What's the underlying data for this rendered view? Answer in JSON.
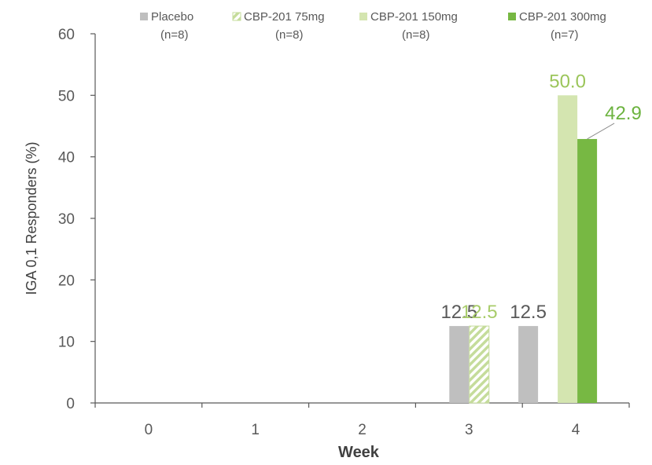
{
  "chart_data": {
    "type": "bar",
    "xlabel": "Week",
    "ylabel": "IGA 0,1 Responders (%)",
    "ylim": [
      0,
      60
    ],
    "yticks": [
      0,
      10,
      20,
      30,
      40,
      50,
      60
    ],
    "categories": [
      "0",
      "1",
      "2",
      "3",
      "4"
    ],
    "grid": false,
    "legend_position": "top",
    "series": [
      {
        "name": "Placebo",
        "n_label": "(n=8)",
        "color": "#bfbfbf",
        "pattern": "solid",
        "values": [
          0,
          0,
          0,
          12.5,
          12.5
        ],
        "data_labels": [
          null,
          null,
          null,
          "12.5",
          "12.5"
        ],
        "label_color": "#595959"
      },
      {
        "name": "CBP-201 75mg",
        "n_label": "(n=8)",
        "color": "#c5dc9b",
        "pattern": "hatch",
        "values": [
          0,
          0,
          0,
          12.5,
          null
        ],
        "data_labels": [
          null,
          null,
          null,
          "12.5",
          null
        ],
        "label_color": "#a8cc6a"
      },
      {
        "name": "CBP-201 150mg",
        "n_label": "(n=8)",
        "color": "#d4e5b0",
        "pattern": "solid",
        "values": [
          0,
          0,
          0,
          null,
          50.0
        ],
        "data_labels": [
          null,
          null,
          null,
          null,
          "50.0"
        ],
        "label_color": "#9bc55a"
      },
      {
        "name": "CBP-201 300mg",
        "n_label": "(n=7)",
        "color": "#77b843",
        "pattern": "solid",
        "values": [
          0,
          0,
          0,
          null,
          42.9
        ],
        "data_labels": [
          null,
          null,
          null,
          null,
          "42.9"
        ],
        "label_color": "#6cb33f"
      }
    ]
  }
}
